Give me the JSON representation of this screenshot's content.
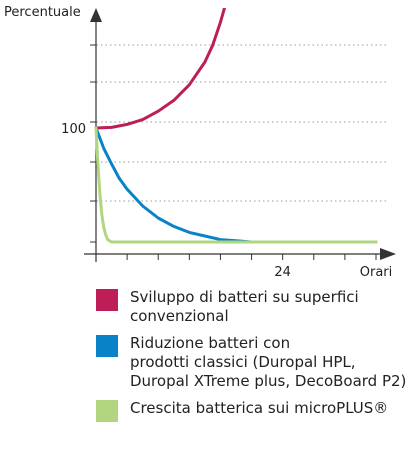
{
  "chart_data": {
    "type": "line",
    "ylabel": "Percentuale",
    "xlabel": "Orari",
    "xlim": [
      0,
      36
    ],
    "ylim": [
      0,
      215
    ],
    "x_ticks": [
      {
        "value": 24,
        "label": "24"
      },
      {
        "value": 36,
        "label": "Orari"
      }
    ],
    "y_ticks": [
      {
        "value": 100,
        "label": "100"
      }
    ],
    "grid": true,
    "legend_position": "bottom",
    "series": [
      {
        "name": "Sviluppo di batteri su superfici\nconvenzional",
        "color": "#be1e58",
        "x": [
          0,
          2,
          4,
          6,
          8,
          10,
          12,
          14,
          15,
          16,
          17,
          17.5
        ],
        "y": [
          100,
          100.5,
          103,
          107,
          114,
          123,
          136,
          155,
          169,
          188,
          211,
          228
        ]
      },
      {
        "name": "Riduzione batteri con\nprodotti classici (Duropal HPL,\nDuropal XTreme plus, DecoBoard P2)",
        "color": "#0a82c8",
        "x": [
          0,
          1,
          2,
          3,
          4,
          6,
          8,
          10,
          12,
          14,
          16,
          18,
          20,
          24,
          30,
          36
        ],
        "y": [
          100,
          83,
          70,
          58,
          49,
          35,
          25,
          18,
          13,
          10,
          7,
          6,
          5,
          5,
          5,
          5
        ]
      },
      {
        "name": "Crescita batterica sui microPLUS®",
        "color": "#b2d67f",
        "x": [
          0,
          0.25,
          0.5,
          0.75,
          1,
          1.25,
          1.5,
          2,
          3,
          36
        ],
        "y": [
          100,
          70,
          45,
          28,
          17,
          11,
          7,
          5,
          5,
          5
        ]
      }
    ]
  }
}
